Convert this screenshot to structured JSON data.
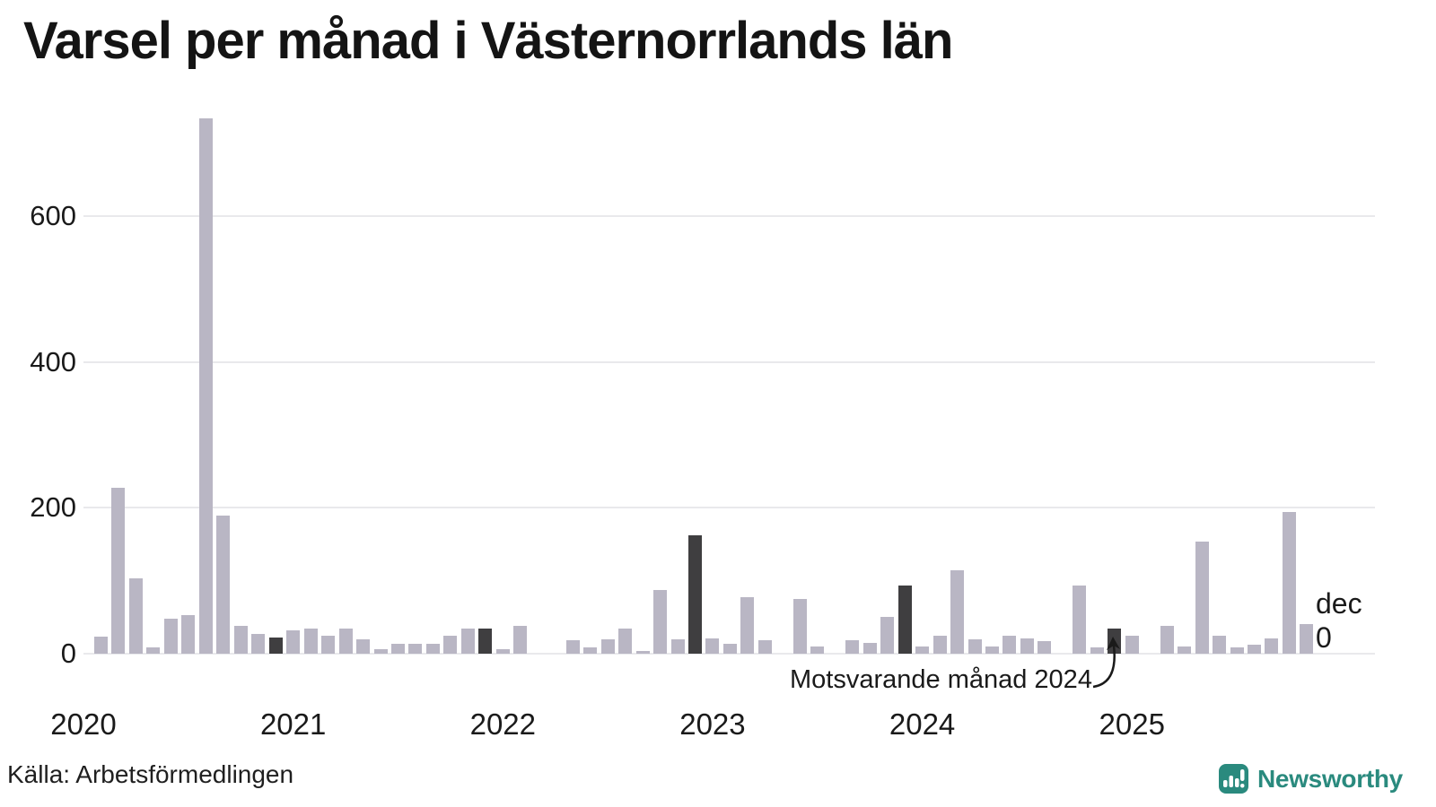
{
  "title": "Varsel per månad i Västernorrlands län",
  "source": "Källa: Arbetsförmedlingen",
  "brand": {
    "name": "Newsworthy",
    "color": "#2a8a7e"
  },
  "annotation": {
    "text": "Motsvarande månad 2024"
  },
  "latest_label": {
    "month": "dec",
    "value": "0"
  },
  "chart_data": {
    "type": "bar",
    "title": "Varsel per månad i Västernorrlands län",
    "xlabel": "",
    "ylabel": "",
    "ylim": [
      0,
      760
    ],
    "yticks": [
      0,
      200,
      400,
      600
    ],
    "grid": "horizontal",
    "bar_color": "#b9b6c4",
    "highlight_color": "#3f3e40",
    "highlight_meaning": "Motsvarande månad 2024 (december varje år)",
    "years": [
      "2020",
      "2021",
      "2022",
      "2023",
      "2024",
      "2025"
    ],
    "months": [
      {
        "label": "feb 2020",
        "value": 23
      },
      {
        "label": "mar 2020",
        "value": 227
      },
      {
        "label": "apr 2020",
        "value": 103
      },
      {
        "label": "maj 2020",
        "value": 9
      },
      {
        "label": "jun 2020",
        "value": 48
      },
      {
        "label": "jul 2020",
        "value": 53
      },
      {
        "label": "aug 2020",
        "value": 734
      },
      {
        "label": "sep 2020",
        "value": 190
      },
      {
        "label": "okt 2020",
        "value": 38
      },
      {
        "label": "nov 2020",
        "value": 27
      },
      {
        "label": "dec 2020",
        "value": 22,
        "highlight": true
      },
      {
        "label": "jan 2021",
        "value": 32
      },
      {
        "label": "feb 2021",
        "value": 35
      },
      {
        "label": "mar 2021",
        "value": 25
      },
      {
        "label": "apr 2021",
        "value": 34
      },
      {
        "label": "maj 2021",
        "value": 20
      },
      {
        "label": "jun 2021",
        "value": 6
      },
      {
        "label": "jul 2021",
        "value": 14
      },
      {
        "label": "aug 2021",
        "value": 14
      },
      {
        "label": "sep 2021",
        "value": 13
      },
      {
        "label": "okt 2021",
        "value": 25
      },
      {
        "label": "nov 2021",
        "value": 35
      },
      {
        "label": "dec 2021",
        "value": 35,
        "highlight": true
      },
      {
        "label": "jan 2022",
        "value": 6
      },
      {
        "label": "feb 2022",
        "value": 38
      },
      {
        "label": "mar 2022",
        "value": 0
      },
      {
        "label": "apr 2022",
        "value": 0
      },
      {
        "label": "maj 2022",
        "value": 18
      },
      {
        "label": "jun 2022",
        "value": 8
      },
      {
        "label": "jul 2022",
        "value": 20
      },
      {
        "label": "aug 2022",
        "value": 35
      },
      {
        "label": "sep 2022",
        "value": 4
      },
      {
        "label": "okt 2022",
        "value": 87
      },
      {
        "label": "nov 2022",
        "value": 20
      },
      {
        "label": "dec 2022",
        "value": 163,
        "highlight": true
      },
      {
        "label": "jan 2023",
        "value": 21
      },
      {
        "label": "feb 2023",
        "value": 13
      },
      {
        "label": "mar 2023",
        "value": 77
      },
      {
        "label": "apr 2023",
        "value": 18
      },
      {
        "label": "maj 2023",
        "value": 0
      },
      {
        "label": "jun 2023",
        "value": 75
      },
      {
        "label": "jul 2023",
        "value": 10
      },
      {
        "label": "aug 2023",
        "value": 0
      },
      {
        "label": "sep 2023",
        "value": 18
      },
      {
        "label": "okt 2023",
        "value": 15
      },
      {
        "label": "nov 2023",
        "value": 51
      },
      {
        "label": "dec 2023",
        "value": 93,
        "highlight": true
      },
      {
        "label": "jan 2024",
        "value": 10
      },
      {
        "label": "feb 2024",
        "value": 25
      },
      {
        "label": "mar 2024",
        "value": 114
      },
      {
        "label": "apr 2024",
        "value": 20
      },
      {
        "label": "maj 2024",
        "value": 10
      },
      {
        "label": "jun 2024",
        "value": 24
      },
      {
        "label": "jul 2024",
        "value": 21
      },
      {
        "label": "aug 2024",
        "value": 17
      },
      {
        "label": "sep 2024",
        "value": 0
      },
      {
        "label": "okt 2024",
        "value": 93
      },
      {
        "label": "nov 2024",
        "value": 8
      },
      {
        "label": "dec 2024",
        "value": 34,
        "highlight": true
      },
      {
        "label": "jan 2025",
        "value": 24
      },
      {
        "label": "feb 2025",
        "value": 0
      },
      {
        "label": "mar 2025",
        "value": 38
      },
      {
        "label": "apr 2025",
        "value": 10
      },
      {
        "label": "maj 2025",
        "value": 154
      },
      {
        "label": "jun 2025",
        "value": 24
      },
      {
        "label": "jul 2025",
        "value": 9
      },
      {
        "label": "aug 2025",
        "value": 12
      },
      {
        "label": "sep 2025",
        "value": 21
      },
      {
        "label": "okt 2025",
        "value": 195
      },
      {
        "label": "nov 2025",
        "value": 41
      },
      {
        "label": "dec 2025",
        "value": 0,
        "current": true
      }
    ]
  }
}
